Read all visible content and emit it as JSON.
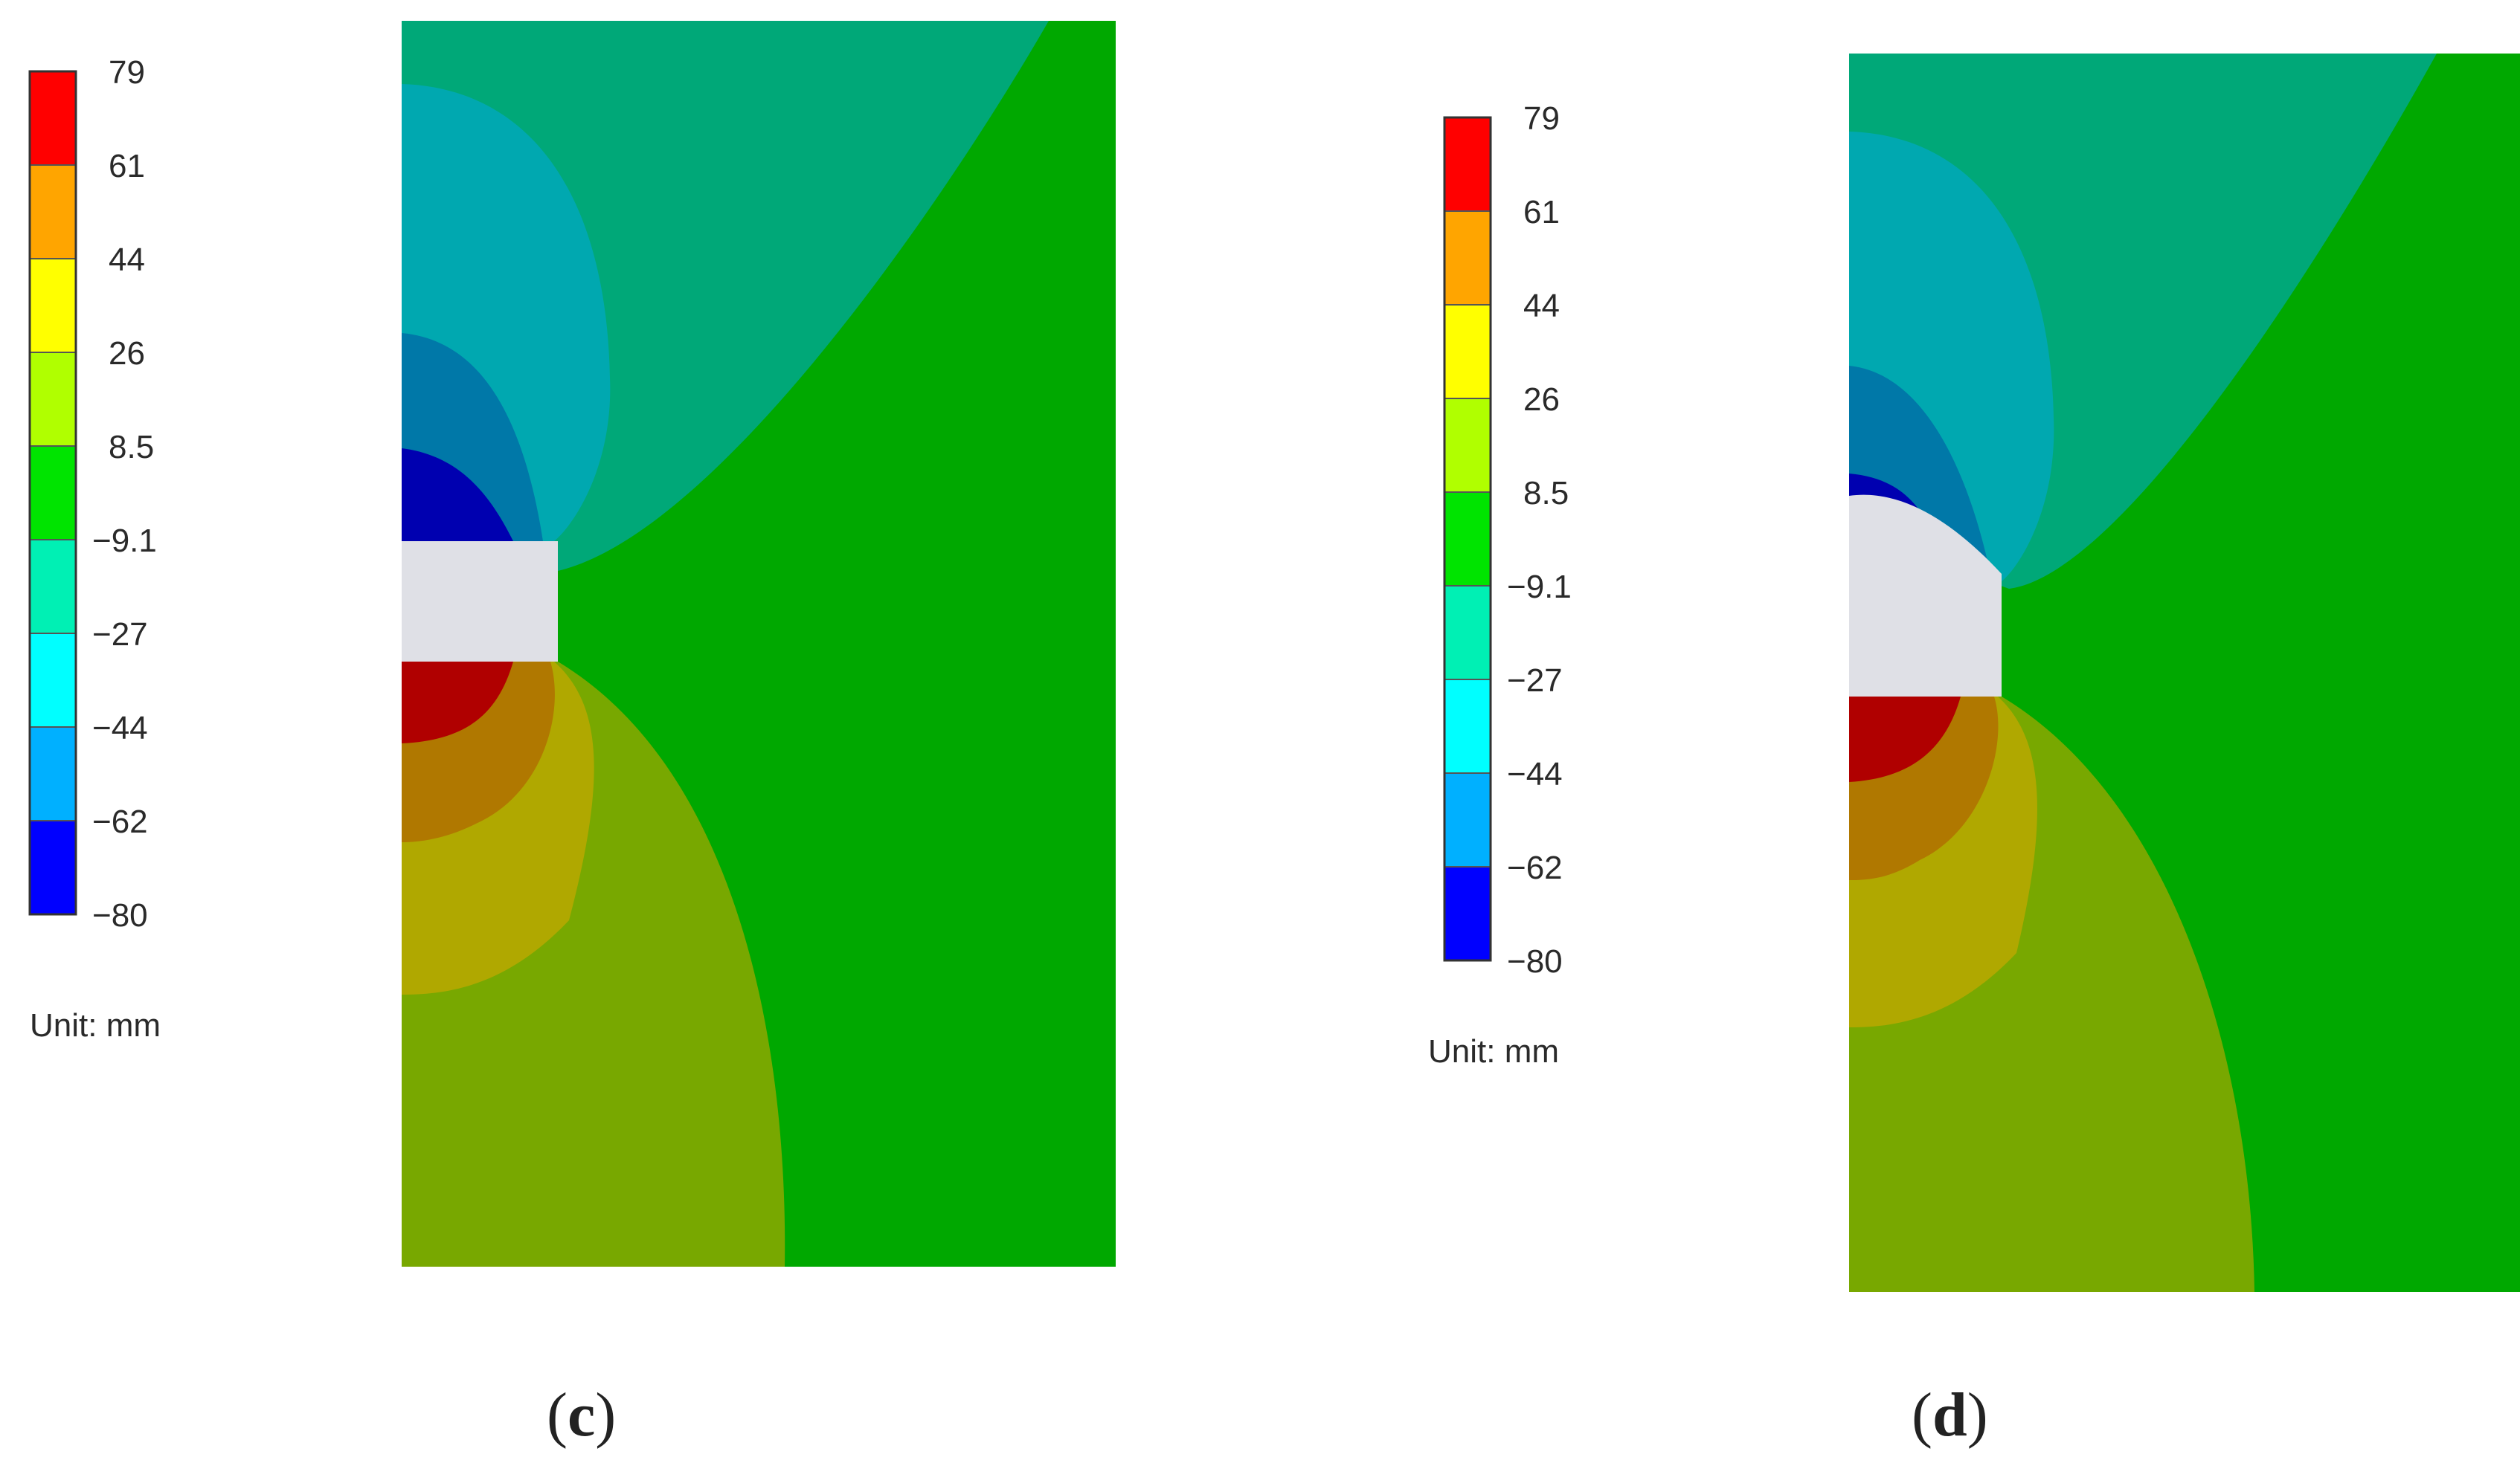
{
  "legend_levels": [
    "79",
    "61",
    "44",
    "26",
    "8.5",
    "−9.1",
    "−27",
    "−44",
    "−62",
    "−80"
  ],
  "legend_band_colors": [
    "#ff0000",
    "#ffa500",
    "#ffff00",
    "#b0ff00",
    "#00e400",
    "#00f0b4",
    "#00ffff",
    "#00b0ff",
    "#0000ff"
  ],
  "unit_label": "Unit: mm",
  "panels": [
    {
      "label_open": "(",
      "label_letter": "c",
      "label_close": ")"
    },
    {
      "label_open": "(",
      "label_letter": "d",
      "label_close": ")"
    }
  ],
  "field_colors": {
    "far_field": "#00a800",
    "upper_teal": "#00a878",
    "cyan_lobe": "#00a8b0",
    "mid_blue": "#0078a8",
    "deep_blue": "#0000b0",
    "red_lobe": "#b00000",
    "orange_lobe": "#b07800",
    "yellow_lobe": "#b0a800",
    "olive_lobe": "#78a800",
    "cavity": "#dfe0e6"
  }
}
